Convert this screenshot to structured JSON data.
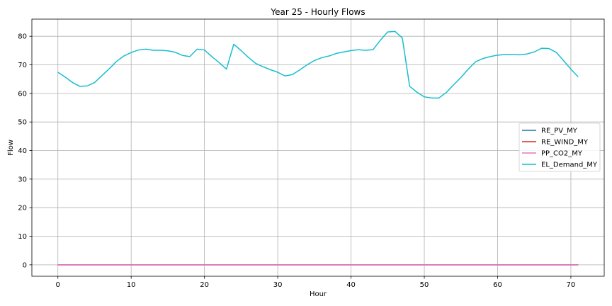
{
  "chart_data": {
    "type": "line",
    "title": "Year 25 - Hourly Flows",
    "xlabel": "Hour",
    "ylabel": "Flow",
    "xlim": [
      -3.55,
      74.55
    ],
    "ylim": [
      -4,
      86
    ],
    "xticks": [
      0,
      10,
      20,
      30,
      40,
      50,
      60,
      70
    ],
    "yticks": [
      0,
      10,
      20,
      30,
      40,
      50,
      60,
      70,
      80
    ],
    "grid": true,
    "legend": "center-right",
    "series": [
      {
        "name": "RE_PV_MY",
        "color": "#1f77b4",
        "x_start": 0,
        "x_end": 71,
        "constant": 0
      },
      {
        "name": "RE_WIND_MY",
        "color": "#d62728",
        "x_start": 0,
        "x_end": 71,
        "constant": 0
      },
      {
        "name": "PP_CO2_MY",
        "color": "#e377c2",
        "x_start": 0,
        "x_end": 71,
        "constant": 0
      },
      {
        "name": "EL_Demand_MY",
        "color": "#17becf",
        "x_start": 0,
        "values": [
          67.4,
          65.7,
          63.8,
          62.5,
          62.6,
          63.8,
          66.2,
          68.6,
          71.2,
          73.1,
          74.3,
          75.2,
          75.5,
          75.1,
          75.1,
          74.9,
          74.4,
          73.3,
          72.9,
          75.5,
          75.2,
          72.9,
          70.8,
          68.5,
          77.2,
          75.0,
          72.6,
          70.5,
          69.3,
          68.3,
          67.4,
          66.1,
          66.6,
          68.2,
          70.0,
          71.5,
          72.5,
          73.1,
          74.0,
          74.5,
          75.0,
          75.3,
          75.1,
          75.3,
          78.6,
          81.5,
          81.7,
          79.4,
          62.5,
          60.4,
          58.8,
          58.4,
          58.4,
          60.3,
          63.0,
          65.6,
          68.5,
          71.1,
          72.2,
          72.9,
          73.4,
          73.6,
          73.6,
          73.5,
          73.8,
          74.5,
          75.8,
          75.7,
          74.4,
          71.5,
          68.5,
          65.8
        ]
      }
    ]
  }
}
